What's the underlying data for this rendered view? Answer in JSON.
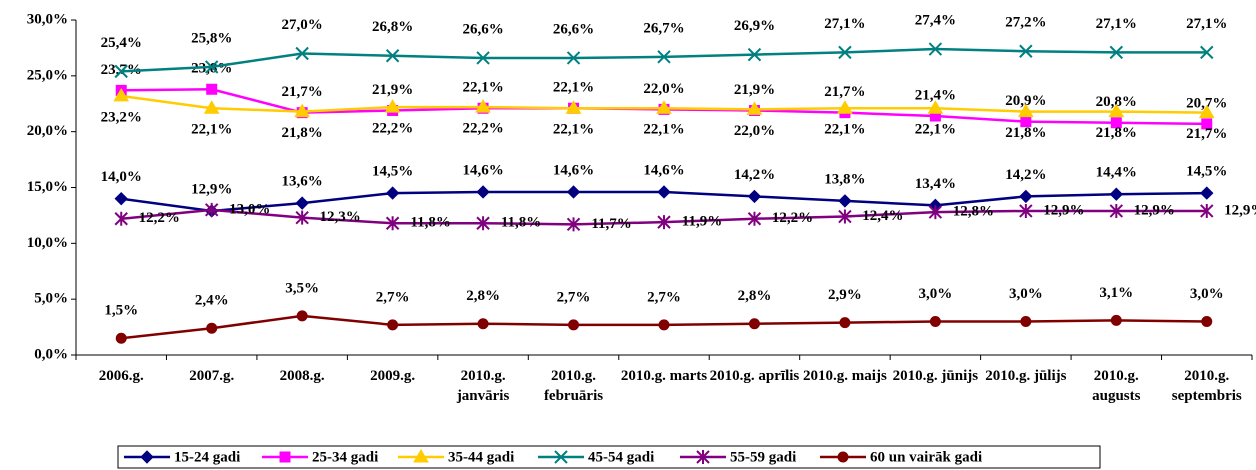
{
  "chart_data": {
    "type": "line",
    "categories": [
      "2006.g.",
      "2007.g.",
      "2008.g.",
      "2009.g.",
      "2010.g. janvāris",
      "2010.g. februāris",
      "2010.g. marts",
      "2010.g. aprīlis",
      "2010.g. maijs",
      "2010.g. jūnijs",
      "2010.g. jūlijs",
      "2010.g. augusts",
      "2010.g. septembris"
    ],
    "ylim": [
      0,
      30
    ],
    "yticks": [
      {
        "value": 0,
        "label": "0,0%"
      },
      {
        "value": 5,
        "label": "5,0%"
      },
      {
        "value": 10,
        "label": "10,0%"
      },
      {
        "value": 15,
        "label": "15,0%"
      },
      {
        "value": 20,
        "label": "20,0%"
      },
      {
        "value": 25,
        "label": "25,0%"
      },
      {
        "value": 30,
        "label": "30,0%"
      }
    ],
    "grid": false,
    "legend": "bottom",
    "series": [
      {
        "name": "15-24 gadi",
        "color": "#000080",
        "marker": "diamond",
        "values": [
          14.0,
          12.9,
          13.6,
          14.5,
          14.6,
          14.6,
          14.6,
          14.2,
          13.8,
          13.4,
          14.2,
          14.4,
          14.5
        ],
        "value_labels": [
          "14,0%",
          "12,9%",
          "13,6%",
          "14,5%",
          "14,6%",
          "14,6%",
          "14,6%",
          "14,2%",
          "13,8%",
          "13,4%",
          "14,2%",
          "14,4%",
          "14,5%"
        ]
      },
      {
        "name": "25-34 gadi",
        "color": "#ff00ff",
        "marker": "square",
        "values": [
          23.7,
          23.8,
          21.7,
          21.9,
          22.1,
          22.1,
          22.0,
          21.9,
          21.7,
          21.4,
          20.9,
          20.8,
          20.7
        ],
        "value_labels": [
          "23,7%",
          "23,8%",
          "21,7%",
          "21,9%",
          "22,1%",
          "22,1%",
          "22,0%",
          "21,9%",
          "21,7%",
          "21,4%",
          "20,9%",
          "20,8%",
          "20,7%"
        ]
      },
      {
        "name": "35-44 gadi",
        "color": "#ffcc00",
        "marker": "triangle",
        "values": [
          23.2,
          22.1,
          21.8,
          22.2,
          22.2,
          22.1,
          22.1,
          22.0,
          22.1,
          22.1,
          21.8,
          21.8,
          21.7
        ],
        "value_labels": [
          "23,2%",
          "22,1%",
          "21,8%",
          "22,2%",
          "22,2%",
          "22,1%",
          "22,1%",
          "22,0%",
          "22,1%",
          "22,1%",
          "21,8%",
          "21,8%",
          "21,7%"
        ]
      },
      {
        "name": "45-54 gadi",
        "color": "#008080",
        "marker": "x",
        "values": [
          25.4,
          25.8,
          27.0,
          26.8,
          26.6,
          26.6,
          26.7,
          26.9,
          27.1,
          27.4,
          27.2,
          27.1,
          27.1
        ],
        "value_labels": [
          "25,4%",
          "25,8%",
          "27,0%",
          "26,8%",
          "26,6%",
          "26,6%",
          "26,7%",
          "26,9%",
          "27,1%",
          "27,4%",
          "27,2%",
          "27,1%",
          "27,1%"
        ]
      },
      {
        "name": "55-59 gadi",
        "color": "#800080",
        "marker": "star",
        "values": [
          12.2,
          13.0,
          12.3,
          11.8,
          11.8,
          11.7,
          11.9,
          12.2,
          12.4,
          12.8,
          12.9,
          12.9,
          12.9
        ],
        "value_labels": [
          "12,2%",
          "13,0%",
          "12,3%",
          "11,8%",
          "11,8%",
          "11,7%",
          "11,9%",
          "12,2%",
          "12,4%",
          "12,8%",
          "12,9%",
          "12,9%",
          "12,9%"
        ]
      },
      {
        "name": "60 un vairāk gadi",
        "color": "#800000",
        "marker": "circle",
        "values": [
          1.5,
          2.4,
          3.5,
          2.7,
          2.8,
          2.7,
          2.7,
          2.8,
          2.9,
          3.0,
          3.0,
          3.1,
          3.0
        ],
        "value_labels": [
          "1,5%",
          "2,4%",
          "3,5%",
          "2,7%",
          "2,8%",
          "2,7%",
          "2,7%",
          "2,8%",
          "2,9%",
          "3,0%",
          "3,0%",
          "3,1%",
          "3,0%"
        ]
      }
    ]
  }
}
